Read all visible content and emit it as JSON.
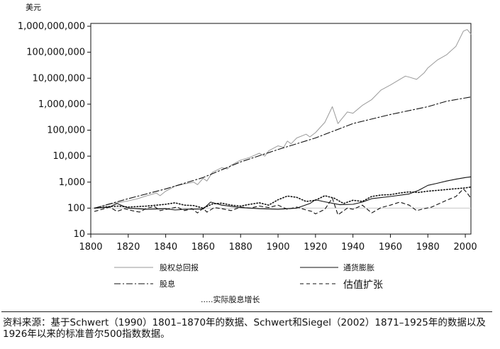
{
  "chart_data": {
    "type": "line",
    "y_unit_label": "美元",
    "yscale": "log",
    "xlim": [
      1800,
      2003
    ],
    "ylim": [
      10,
      1000000000
    ],
    "x_ticks": [
      "1800",
      "1820",
      "1840",
      "1860",
      "1880",
      "1900",
      "1920",
      "1940",
      "1960",
      "1980",
      "2000"
    ],
    "y_ticks": [
      {
        "value": 10,
        "label": "10"
      },
      {
        "value": 100,
        "label": "100"
      },
      {
        "value": 1000,
        "label": "1,000"
      },
      {
        "value": 10000,
        "label": "10,000"
      },
      {
        "value": 100000,
        "label": "100,000"
      },
      {
        "value": 1000000,
        "label": "1,000,000"
      },
      {
        "value": 10000000,
        "label": "10,000,000"
      },
      {
        "value": 100000000,
        "label": "100,000,000"
      },
      {
        "value": 1000000000,
        "label": "1,000,000,000"
      }
    ],
    "reference_line": {
      "value": 100,
      "color": "#c8c8c8"
    },
    "series": [
      {
        "name": "股权总回报",
        "style": "solid-gray",
        "color": "#9a9a9a",
        "points": [
          [
            1802,
            100
          ],
          [
            1805,
            115
          ],
          [
            1810,
            140
          ],
          [
            1815,
            165
          ],
          [
            1820,
            190
          ],
          [
            1825,
            230
          ],
          [
            1830,
            300
          ],
          [
            1835,
            380
          ],
          [
            1837,
            300
          ],
          [
            1840,
            450
          ],
          [
            1845,
            700
          ],
          [
            1850,
            850
          ],
          [
            1855,
            1000
          ],
          [
            1857,
            800
          ],
          [
            1860,
            1400
          ],
          [
            1862,
            1100
          ],
          [
            1865,
            2400
          ],
          [
            1870,
            3600
          ],
          [
            1873,
            3200
          ],
          [
            1875,
            4500
          ],
          [
            1880,
            7000
          ],
          [
            1885,
            9000
          ],
          [
            1890,
            13000
          ],
          [
            1893,
            10000
          ],
          [
            1895,
            16000
          ],
          [
            1900,
            25000
          ],
          [
            1903,
            22000
          ],
          [
            1905,
            38000
          ],
          [
            1907,
            30000
          ],
          [
            1910,
            50000
          ],
          [
            1915,
            70000
          ],
          [
            1917,
            55000
          ],
          [
            1920,
            80000
          ],
          [
            1925,
            200000
          ],
          [
            1929,
            800000
          ],
          [
            1932,
            180000
          ],
          [
            1937,
            500000
          ],
          [
            1940,
            450000
          ],
          [
            1945,
            900000
          ],
          [
            1950,
            1500000
          ],
          [
            1955,
            3500000
          ],
          [
            1960,
            5500000
          ],
          [
            1965,
            9000000
          ],
          [
            1968,
            12000000
          ],
          [
            1970,
            11000000
          ],
          [
            1974,
            9000000
          ],
          [
            1978,
            16000000
          ],
          [
            1980,
            25000000
          ],
          [
            1985,
            50000000
          ],
          [
            1990,
            80000000
          ],
          [
            1995,
            170000000
          ],
          [
            1999,
            650000000
          ],
          [
            2001,
            750000000
          ],
          [
            2003,
            500000000
          ]
        ]
      },
      {
        "name": "通货膨胀",
        "style": "solid-black",
        "color": "#111111",
        "points": [
          [
            1802,
            100
          ],
          [
            1810,
            110
          ],
          [
            1814,
            150
          ],
          [
            1820,
            100
          ],
          [
            1830,
            90
          ],
          [
            1840,
            95
          ],
          [
            1845,
            85
          ],
          [
            1850,
            90
          ],
          [
            1860,
            92
          ],
          [
            1864,
            170
          ],
          [
            1870,
            130
          ],
          [
            1880,
            105
          ],
          [
            1890,
            95
          ],
          [
            1900,
            90
          ],
          [
            1910,
            100
          ],
          [
            1917,
            150
          ],
          [
            1920,
            210
          ],
          [
            1925,
            175
          ],
          [
            1933,
            135
          ],
          [
            1940,
            140
          ],
          [
            1945,
            170
          ],
          [
            1950,
            230
          ],
          [
            1960,
            280
          ],
          [
            1970,
            350
          ],
          [
            1975,
            480
          ],
          [
            1980,
            750
          ],
          [
            1985,
            900
          ],
          [
            1990,
            1100
          ],
          [
            1995,
            1300
          ],
          [
            2000,
            1500
          ],
          [
            2003,
            1600
          ]
        ]
      },
      {
        "name": "股息",
        "style": "dash-dot",
        "color": "#111111",
        "points": [
          [
            1802,
            100
          ],
          [
            1820,
            230
          ],
          [
            1840,
            550
          ],
          [
            1860,
            1500
          ],
          [
            1880,
            6000
          ],
          [
            1900,
            18000
          ],
          [
            1920,
            50000
          ],
          [
            1940,
            180000
          ],
          [
            1960,
            400000
          ],
          [
            1980,
            800000
          ],
          [
            1990,
            1300000
          ],
          [
            2003,
            1900000
          ]
        ]
      },
      {
        "name": "估值扩张",
        "style": "dashed",
        "color": "#111111",
        "points": [
          [
            1802,
            75
          ],
          [
            1806,
            90
          ],
          [
            1810,
            110
          ],
          [
            1814,
            75
          ],
          [
            1818,
            95
          ],
          [
            1822,
            80
          ],
          [
            1826,
            70
          ],
          [
            1830,
            100
          ],
          [
            1834,
            115
          ],
          [
            1837,
            80
          ],
          [
            1842,
            95
          ],
          [
            1846,
            110
          ],
          [
            1850,
            80
          ],
          [
            1854,
            95
          ],
          [
            1857,
            65
          ],
          [
            1860,
            100
          ],
          [
            1862,
            70
          ],
          [
            1866,
            105
          ],
          [
            1870,
            95
          ],
          [
            1875,
            80
          ],
          [
            1880,
            110
          ],
          [
            1885,
            100
          ],
          [
            1890,
            120
          ],
          [
            1895,
            105
          ],
          [
            1900,
            130
          ],
          [
            1905,
            90
          ],
          [
            1910,
            110
          ],
          [
            1915,
            85
          ],
          [
            1918,
            75
          ],
          [
            1920,
            60
          ],
          [
            1925,
            90
          ],
          [
            1929,
            240
          ],
          [
            1932,
            55
          ],
          [
            1937,
            100
          ],
          [
            1940,
            90
          ],
          [
            1945,
            130
          ],
          [
            1950,
            65
          ],
          [
            1955,
            105
          ],
          [
            1960,
            130
          ],
          [
            1965,
            170
          ],
          [
            1970,
            130
          ],
          [
            1974,
            80
          ],
          [
            1978,
            95
          ],
          [
            1982,
            110
          ],
          [
            1987,
            160
          ],
          [
            1990,
            200
          ],
          [
            1995,
            280
          ],
          [
            1999,
            550
          ],
          [
            2001,
            380
          ],
          [
            2003,
            240
          ]
        ]
      },
      {
        "name": "实际股息增长",
        "style": "dotted",
        "color": "#111111",
        "points": [
          [
            1802,
            100
          ],
          [
            1810,
            115
          ],
          [
            1815,
            120
          ],
          [
            1820,
            110
          ],
          [
            1830,
            120
          ],
          [
            1840,
            140
          ],
          [
            1845,
            160
          ],
          [
            1850,
            130
          ],
          [
            1855,
            125
          ],
          [
            1860,
            100
          ],
          [
            1865,
            145
          ],
          [
            1870,
            155
          ],
          [
            1875,
            130
          ],
          [
            1880,
            120
          ],
          [
            1885,
            140
          ],
          [
            1890,
            160
          ],
          [
            1895,
            130
          ],
          [
            1900,
            210
          ],
          [
            1905,
            290
          ],
          [
            1910,
            260
          ],
          [
            1915,
            180
          ],
          [
            1920,
            200
          ],
          [
            1925,
            300
          ],
          [
            1930,
            240
          ],
          [
            1935,
            150
          ],
          [
            1940,
            200
          ],
          [
            1945,
            180
          ],
          [
            1950,
            280
          ],
          [
            1955,
            320
          ],
          [
            1960,
            330
          ],
          [
            1965,
            380
          ],
          [
            1970,
            420
          ],
          [
            1975,
            400
          ],
          [
            1980,
            450
          ],
          [
            1985,
            480
          ],
          [
            1990,
            520
          ],
          [
            1995,
            560
          ],
          [
            2000,
            600
          ],
          [
            2003,
            650
          ]
        ]
      }
    ],
    "legend": [
      {
        "label": "股权总回报",
        "style": "solid-gray"
      },
      {
        "label": "通货膨胀",
        "style": "solid-black"
      },
      {
        "label": "股息",
        "style": "dash-dot"
      },
      {
        "label": "估值扩张",
        "style": "dashed"
      },
      {
        "label": ".....实际股息增长",
        "style": "dotted"
      }
    ],
    "legend_position": "bottom",
    "grid": false
  },
  "source_note": "资料来源：基于Schwert（1990）1801–1870年的数据、Schwert和Siegel（2002）1871–1925年的数据以及1926年以来的标准普尔500指数数据。"
}
